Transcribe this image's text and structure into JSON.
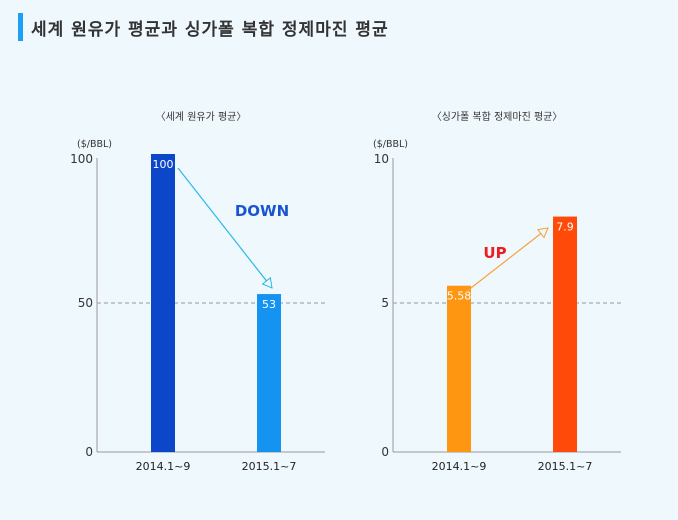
{
  "title": "세계 원유가 평균과 싱가폴 복합 정제마진 평균",
  "chart_data": [
    {
      "type": "bar",
      "title": "〈세계 원유가 평균〉",
      "unit": "($/BBL)",
      "categories": [
        "2014.1~9",
        "2015.1~7"
      ],
      "values": [
        100,
        53
      ],
      "data_labels": [
        "100",
        "53"
      ],
      "colors": [
        "#0d47c9",
        "#1593f0"
      ],
      "ylim": [
        0,
        100
      ],
      "yticks": [
        "0",
        "50",
        "100"
      ],
      "ytick_values": [
        0,
        50,
        100
      ],
      "reference_line": 50,
      "annotation": {
        "text": "DOWN",
        "color": "#1a55d0",
        "arrow_color": "#2ab8e8"
      }
    },
    {
      "type": "bar",
      "title": "〈싱가폴 복합 정제마진 평균〉",
      "unit": "($/BBL)",
      "categories": [
        "2014.1~9",
        "2015.1~7"
      ],
      "values": [
        5.58,
        7.9
      ],
      "data_labels": [
        "5.58",
        "7.9"
      ],
      "colors": [
        "#ff9612",
        "#ff4a0a"
      ],
      "ylim": [
        0,
        10
      ],
      "yticks": [
        "0",
        "5",
        "10"
      ],
      "ytick_values": [
        0,
        5,
        10
      ],
      "reference_line": 5,
      "annotation": {
        "text": "UP",
        "color": "#ee1c1c",
        "arrow_color": "#f7a23a"
      }
    }
  ]
}
